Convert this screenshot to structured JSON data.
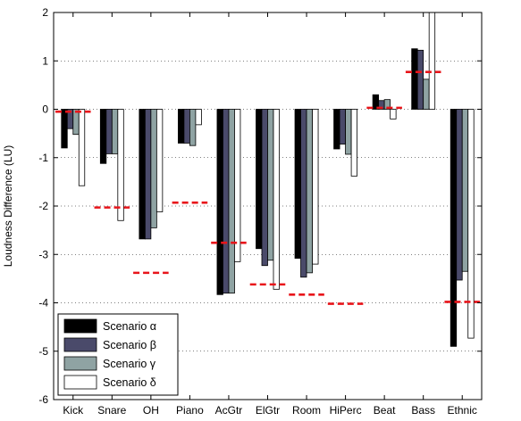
{
  "chart_data": {
    "type": "bar",
    "title": "",
    "xlabel": "",
    "ylabel": "Loudness Difference (LU)",
    "ylim": [
      -6,
      2
    ],
    "yticks": [
      -6,
      -5,
      -4,
      -3,
      -2,
      -1,
      0,
      1,
      2
    ],
    "grid": "horizontal-dotted",
    "legend_position": "bottom-left",
    "categories": [
      "Kick",
      "Snare",
      "OH",
      "Piano",
      "AcGtr",
      "ElGtr",
      "Room",
      "HiPerc",
      "Beat",
      "Bass",
      "Ethnic"
    ],
    "series": [
      {
        "name": "Scenario α",
        "color": "#000000",
        "values": [
          -0.8,
          -1.12,
          -2.68,
          -0.7,
          -3.83,
          -2.88,
          -3.08,
          -0.82,
          0.3,
          1.25,
          -4.9
        ]
      },
      {
        "name": "Scenario β",
        "color": "#4a4a6a",
        "values": [
          -0.4,
          -0.92,
          -2.68,
          -0.7,
          -3.8,
          -3.23,
          -3.47,
          -0.72,
          0.18,
          1.22,
          -3.53
        ]
      },
      {
        "name": "Scenario γ",
        "color": "#8fa3a3",
        "values": [
          -0.52,
          -0.92,
          -2.45,
          -0.75,
          -3.8,
          -3.12,
          -3.38,
          -0.93,
          0.2,
          0.62,
          -3.35
        ]
      },
      {
        "name": "Scenario δ",
        "color": "#ffffff",
        "values": [
          -1.58,
          -2.3,
          -2.12,
          -0.32,
          -3.15,
          -3.72,
          -3.2,
          -1.38,
          -0.2,
          2.0,
          -4.73
        ]
      }
    ],
    "reference": {
      "style": "red-dashed",
      "color": "#e8141a",
      "values": [
        -0.05,
        -2.03,
        -3.38,
        -1.93,
        -2.76,
        -3.62,
        -3.83,
        -4.02,
        0.03,
        0.77,
        -3.98
      ]
    }
  }
}
